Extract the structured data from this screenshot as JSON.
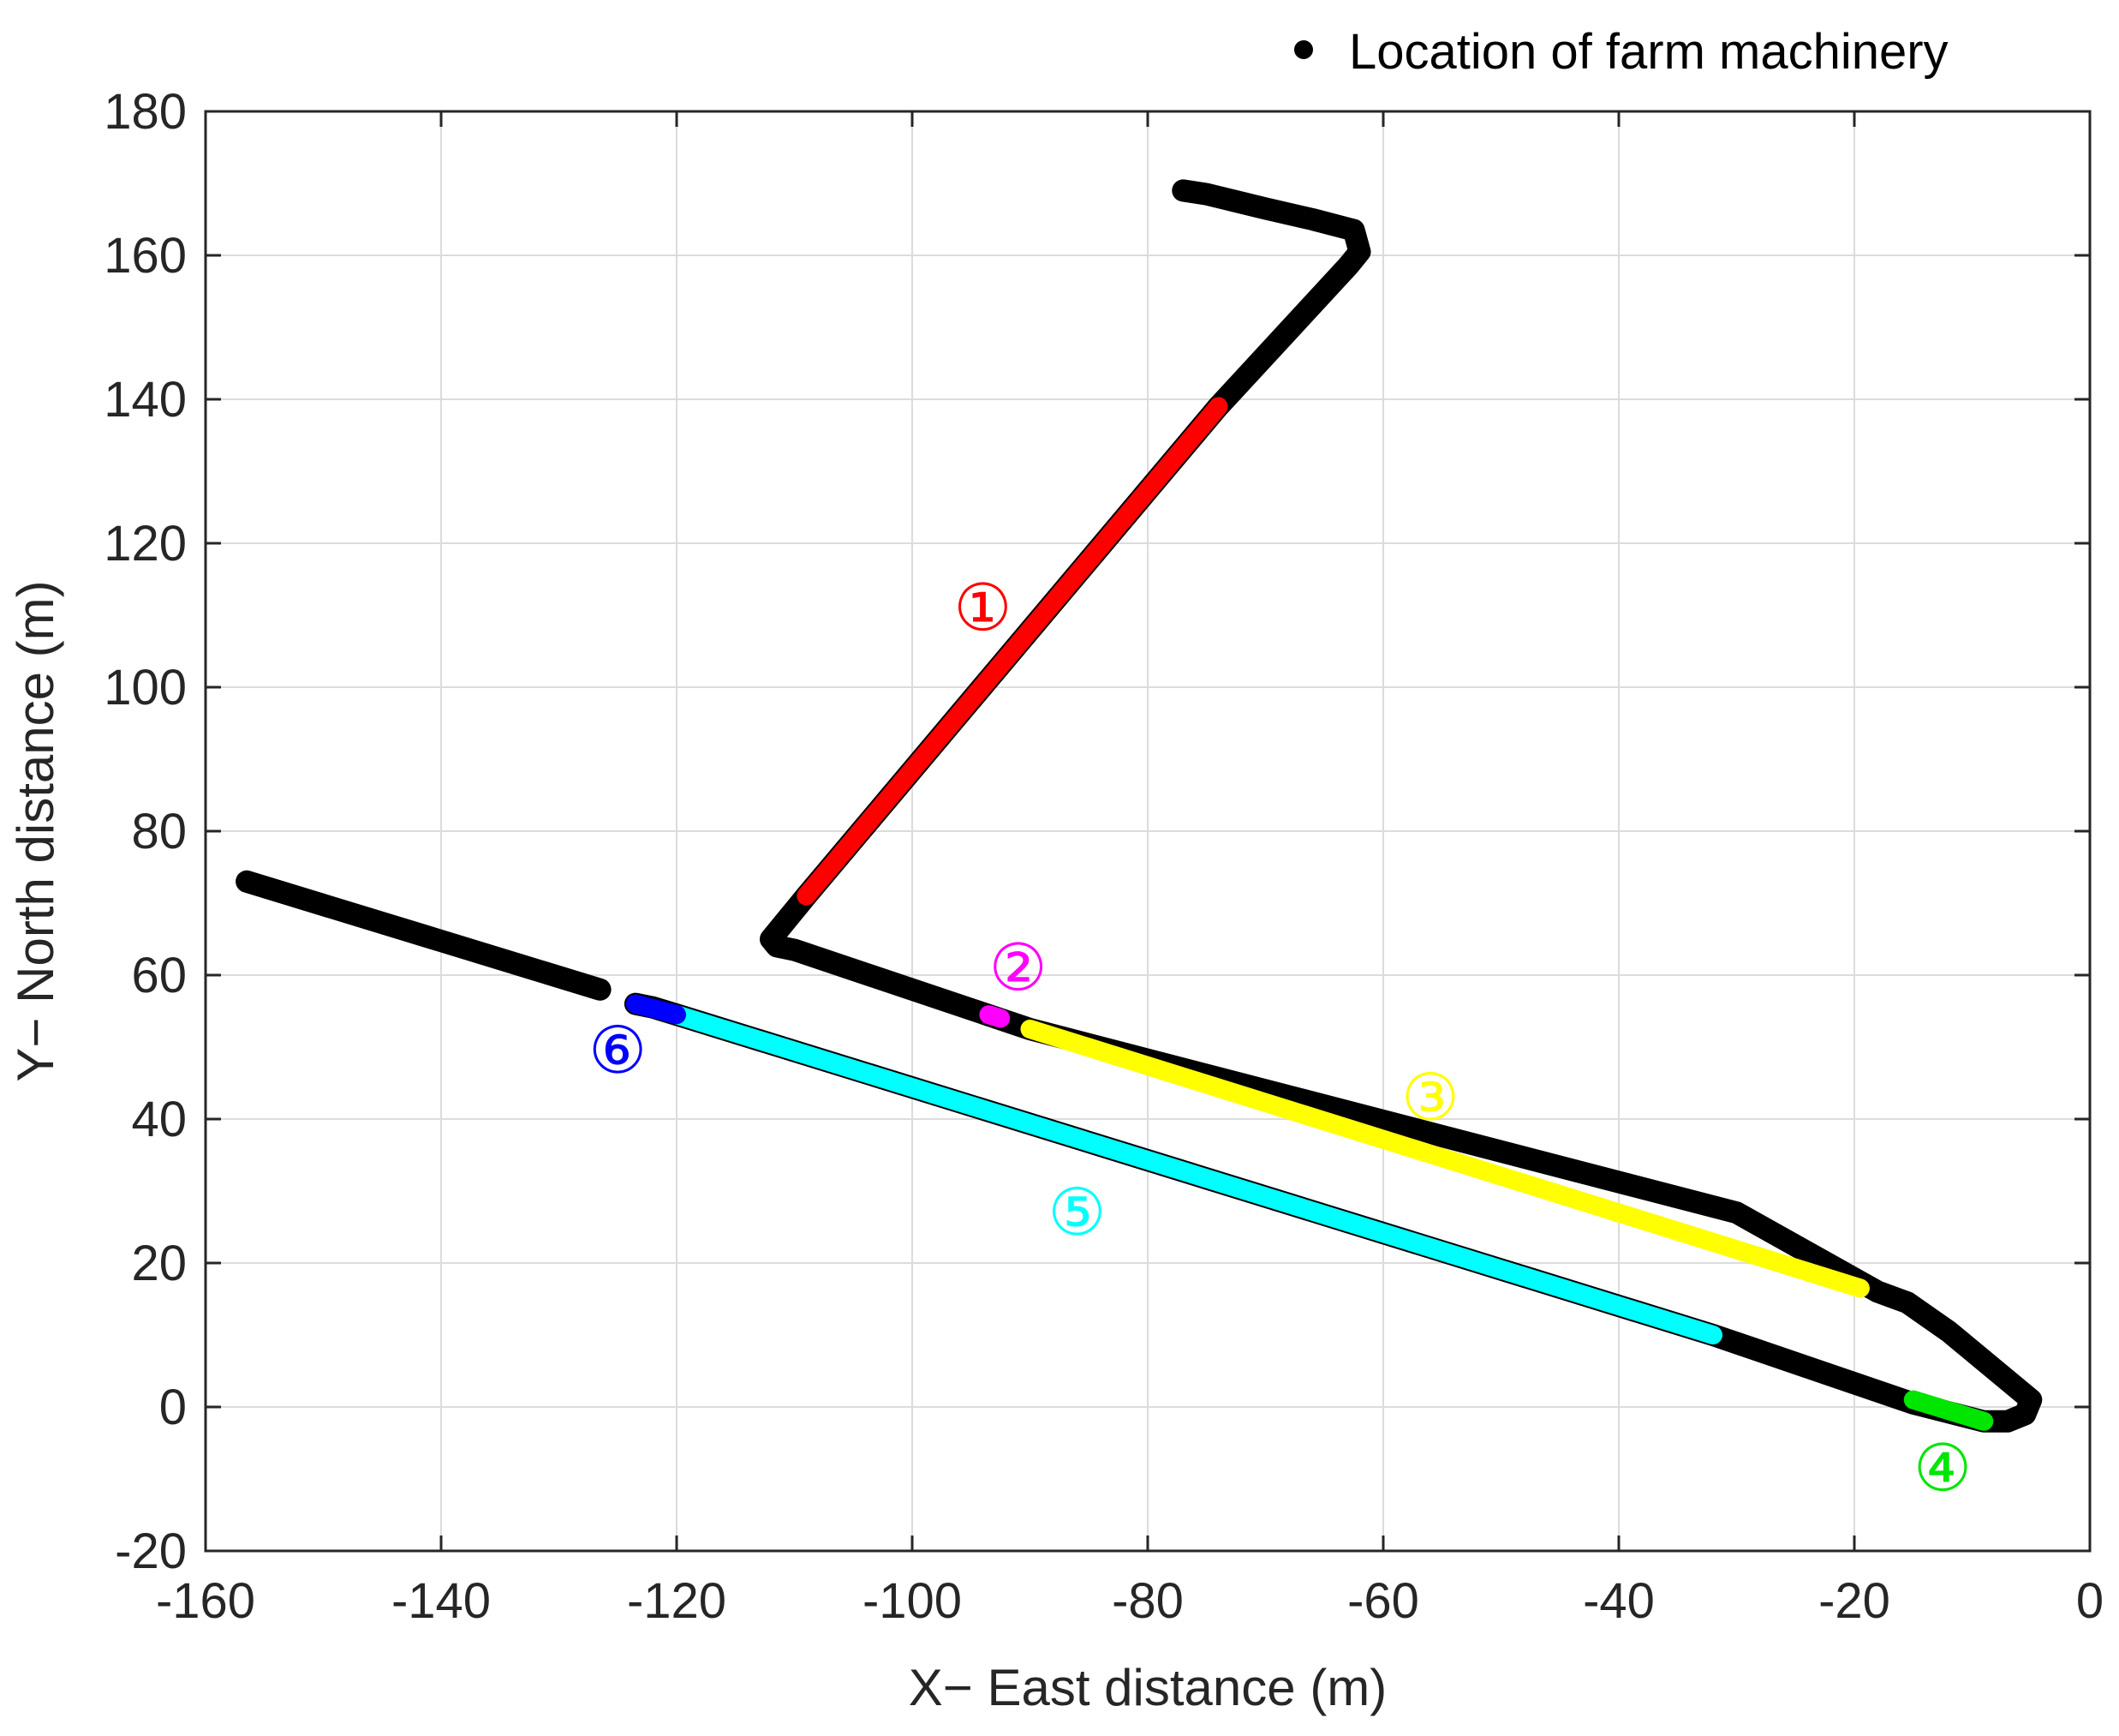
{
  "chart_data": {
    "type": "line",
    "title": "",
    "xlabel": "X− East distance (m)",
    "ylabel": "Y− North distance (m)",
    "xlim": [
      -160,
      0
    ],
    "ylim": [
      -20,
      180
    ],
    "xticks": [
      -160,
      -140,
      -120,
      -100,
      -80,
      -60,
      -40,
      -20,
      0
    ],
    "yticks": [
      -20,
      0,
      20,
      40,
      60,
      80,
      100,
      120,
      140,
      160,
      180
    ],
    "grid": true,
    "legend": {
      "position": "top-right",
      "entries": [
        {
          "label": "Location of farm machinery",
          "color": "#000000"
        }
      ]
    },
    "path": {
      "color": "#000000",
      "points": [
        [
          -77,
          169
        ],
        [
          -75,
          168.5
        ],
        [
          -70,
          166.5
        ],
        [
          -66,
          165
        ],
        [
          -62.5,
          163.5
        ],
        [
          -62,
          160.5
        ],
        [
          -63,
          158.5
        ],
        [
          -74,
          139
        ],
        [
          -109,
          71
        ],
        [
          -112,
          65
        ],
        [
          -111.5,
          64
        ],
        [
          -110,
          63.5
        ],
        [
          -90,
          52.5
        ],
        [
          -30,
          27
        ],
        [
          -18,
          16
        ],
        [
          -15.5,
          14.5
        ],
        [
          -12,
          10.5
        ],
        [
          -5,
          1
        ],
        [
          -5.5,
          -1
        ],
        [
          -7,
          -2
        ],
        [
          -9,
          -2
        ],
        [
          -15,
          0.5
        ],
        [
          -32,
          10
        ],
        [
          -120,
          54.5
        ],
        [
          -122,
          55.5
        ],
        [
          -123.5,
          56
        ]
      ],
      "tail": [
        [
          -126.5,
          58
        ],
        [
          -156.5,
          73
        ]
      ]
    },
    "segments": [
      {
        "id": "1",
        "label": "①",
        "color": "#ff0000",
        "points": [
          [
            -74,
            139
          ],
          [
            -109,
            71
          ]
        ],
        "label_pos": [
          -94,
          111
        ]
      },
      {
        "id": "2",
        "label": "②",
        "color": "#ff00ff",
        "points": [
          [
            -93.5,
            54.5
          ],
          [
            -92.5,
            54
          ]
        ],
        "label_pos": [
          -91,
          61
        ]
      },
      {
        "id": "3",
        "label": "③",
        "color": "#ffff00",
        "points": [
          [
            -90,
            52.5
          ],
          [
            -19.5,
            16.5
          ]
        ],
        "label_pos": [
          -56,
          43
        ]
      },
      {
        "id": "4",
        "label": "④",
        "color": "#00e600",
        "points": [
          [
            -15,
            1
          ],
          [
            -9,
            -2
          ]
        ],
        "label_pos": [
          -12.5,
          -8.5
        ]
      },
      {
        "id": "5",
        "label": "⑤",
        "color": "#00ffff",
        "points": [
          [
            -32,
            10
          ],
          [
            -120,
            54.5
          ]
        ],
        "label_pos": [
          -86,
          27
        ]
      },
      {
        "id": "6",
        "label": "⑥",
        "color": "#0000ff",
        "points": [
          [
            -120,
            54.5
          ],
          [
            -123.5,
            56
          ]
        ],
        "label_pos": [
          -125,
          49.5
        ]
      }
    ]
  }
}
